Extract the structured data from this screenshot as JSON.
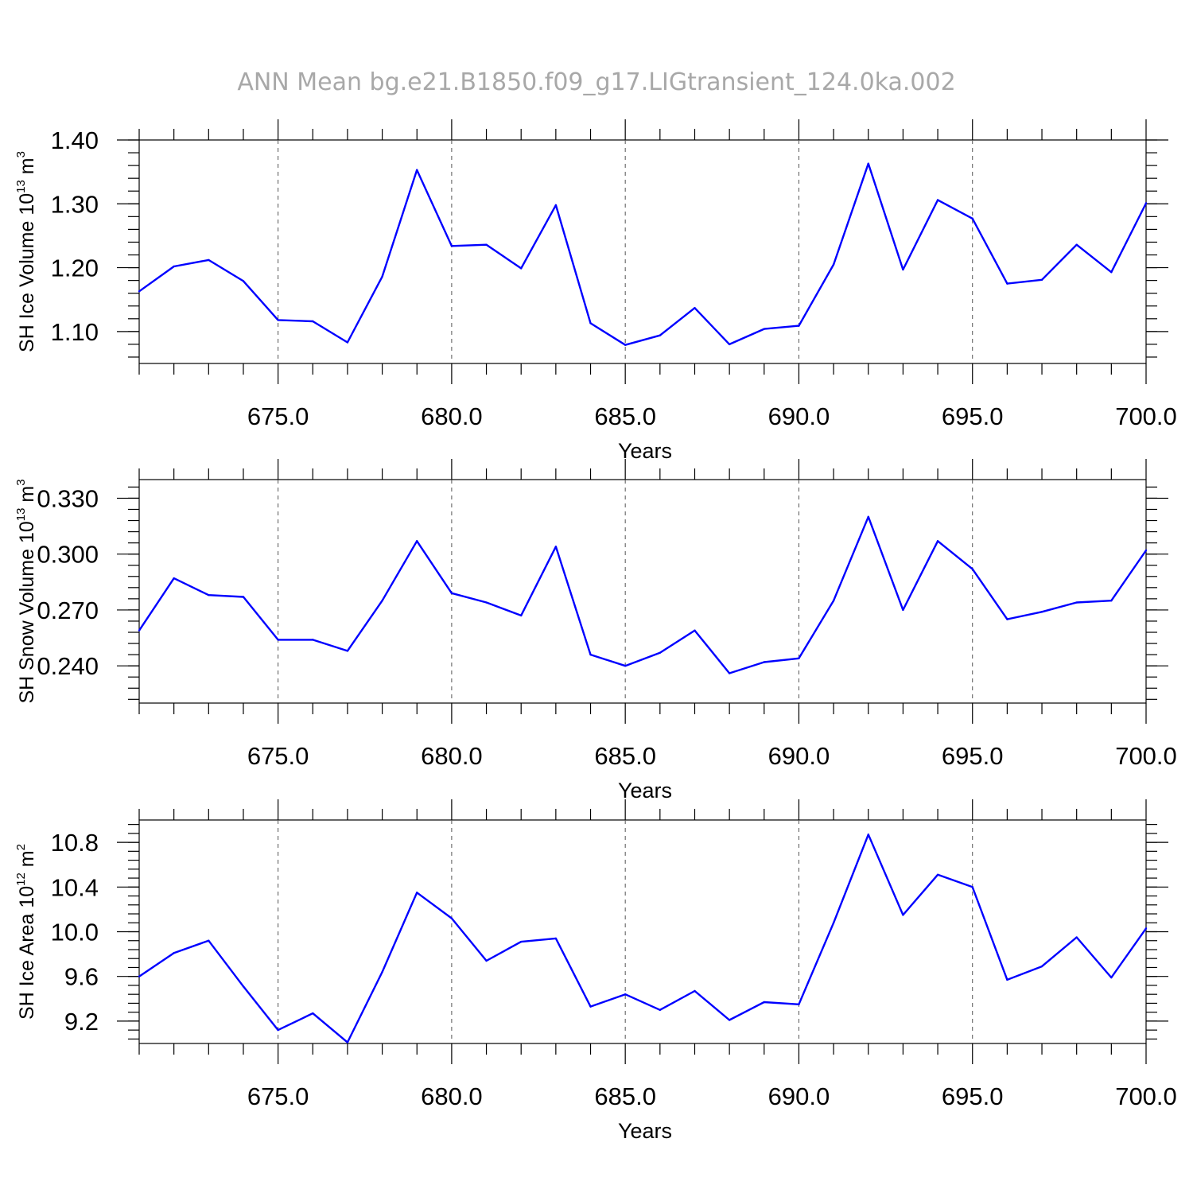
{
  "figure": {
    "title": "ANN Mean bg.e21.B1850.f09_g17.LIGtransient_124.0ka.002",
    "line_color": "#0000ff"
  },
  "chart_data": [
    {
      "type": "line",
      "ylabel_main": "SH Ice Volume 10",
      "ylabel_sup": "13",
      "ylabel_unit": " m",
      "ylabel_unit_sup": "3",
      "xlabel": "Years",
      "xlim": [
        671,
        700
      ],
      "ylim": [
        1.05,
        1.4
      ],
      "yticks": [
        1.1,
        1.2,
        1.3,
        1.4
      ],
      "ytick_labels": [
        "1.10",
        "1.20",
        "1.30",
        "1.40"
      ],
      "yminor_step": 0.02,
      "xticks": [
        675,
        680,
        685,
        690,
        695,
        700
      ],
      "xtick_labels": [
        "675.0",
        "680.0",
        "685.0",
        "690.0",
        "695.0",
        "700.0"
      ],
      "x": [
        671,
        672,
        673,
        674,
        675,
        676,
        677,
        678,
        679,
        680,
        681,
        682,
        683,
        684,
        685,
        686,
        687,
        688,
        689,
        690,
        691,
        692,
        693,
        694,
        695,
        696,
        697,
        698,
        699,
        700
      ],
      "values": [
        1.163,
        1.202,
        1.212,
        1.179,
        1.118,
        1.116,
        1.083,
        1.186,
        1.353,
        1.234,
        1.236,
        1.199,
        1.298,
        1.113,
        1.079,
        1.094,
        1.137,
        1.08,
        1.104,
        1.109,
        1.205,
        1.363,
        1.197,
        1.306,
        1.277,
        1.175,
        1.181,
        1.236,
        1.193,
        1.301
      ]
    },
    {
      "type": "line",
      "ylabel_main": "SH Snow Volume 10",
      "ylabel_sup": "13",
      "ylabel_unit": " m",
      "ylabel_unit_sup": "3",
      "xlabel": "Years",
      "xlim": [
        671,
        700
      ],
      "ylim": [
        0.22,
        0.34
      ],
      "yticks": [
        0.24,
        0.27,
        0.3,
        0.33
      ],
      "ytick_labels": [
        "0.240",
        "0.270",
        "0.300",
        "0.330"
      ],
      "yminor_step": 0.006,
      "xticks": [
        675,
        680,
        685,
        690,
        695,
        700
      ],
      "xtick_labels": [
        "675.0",
        "680.0",
        "685.0",
        "690.0",
        "695.0",
        "700.0"
      ],
      "x": [
        671,
        672,
        673,
        674,
        675,
        676,
        677,
        678,
        679,
        680,
        681,
        682,
        683,
        684,
        685,
        686,
        687,
        688,
        689,
        690,
        691,
        692,
        693,
        694,
        695,
        696,
        697,
        698,
        699,
        700
      ],
      "values": [
        0.259,
        0.287,
        0.278,
        0.277,
        0.254,
        0.254,
        0.248,
        0.275,
        0.307,
        0.279,
        0.274,
        0.267,
        0.304,
        0.246,
        0.24,
        0.247,
        0.259,
        0.236,
        0.242,
        0.244,
        0.275,
        0.32,
        0.27,
        0.307,
        0.292,
        0.265,
        0.269,
        0.274,
        0.275,
        0.302
      ]
    },
    {
      "type": "line",
      "ylabel_main": "SH Ice Area 10",
      "ylabel_sup": "12",
      "ylabel_unit": " m",
      "ylabel_unit_sup": "2",
      "xlabel": "Years",
      "xlim": [
        671,
        700
      ],
      "ylim": [
        9.0,
        11.0
      ],
      "yticks": [
        9.2,
        9.6,
        10.0,
        10.4,
        10.8
      ],
      "ytick_labels": [
        "9.2",
        "9.6",
        "10.0",
        "10.4",
        "10.8"
      ],
      "yminor_step": 0.08,
      "xticks": [
        675,
        680,
        685,
        690,
        695,
        700
      ],
      "xtick_labels": [
        "675.0",
        "680.0",
        "685.0",
        "690.0",
        "695.0",
        "700.0"
      ],
      "x": [
        671,
        672,
        673,
        674,
        675,
        676,
        677,
        678,
        679,
        680,
        681,
        682,
        683,
        684,
        685,
        686,
        687,
        688,
        689,
        690,
        691,
        692,
        693,
        694,
        695,
        696,
        697,
        698,
        699,
        700
      ],
      "values": [
        9.6,
        9.81,
        9.92,
        9.51,
        9.12,
        9.27,
        9.01,
        9.64,
        10.35,
        10.12,
        9.74,
        9.91,
        9.94,
        9.33,
        9.44,
        9.3,
        9.47,
        9.21,
        9.37,
        9.35,
        10.08,
        10.87,
        10.15,
        10.51,
        10.4,
        9.57,
        9.69,
        9.95,
        9.59,
        10.03
      ]
    }
  ]
}
